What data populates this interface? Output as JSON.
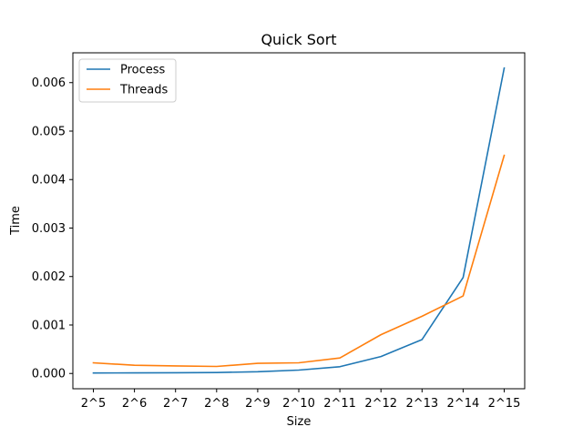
{
  "chart_data": {
    "type": "line",
    "title": "Quick Sort",
    "xlabel": "Size",
    "ylabel": "Time",
    "categories": [
      "2^5",
      "2^6",
      "2^7",
      "2^8",
      "2^9",
      "2^10",
      "2^11",
      "2^12",
      "2^13",
      "2^14",
      "2^15"
    ],
    "ylim": [
      -0.000315,
      0.006615
    ],
    "yticks": [
      0.0,
      0.001,
      0.002,
      0.003,
      0.004,
      0.005,
      0.006
    ],
    "ytick_labels": [
      "0.000",
      "0.001",
      "0.002",
      "0.003",
      "0.004",
      "0.005",
      "0.006"
    ],
    "grid": false,
    "legend_position": "top-left",
    "series": [
      {
        "name": "Process",
        "color": "#1f77b4",
        "values": [
          1e-05,
          1.2e-05,
          1.5e-05,
          2e-05,
          3.5e-05,
          7e-05,
          0.00014,
          0.00035,
          0.0007,
          0.00198,
          0.0063
        ]
      },
      {
        "name": "Threads",
        "color": "#ff7f0e",
        "values": [
          0.00022,
          0.00017,
          0.000155,
          0.000145,
          0.00021,
          0.00022,
          0.00032,
          0.0008,
          0.00118,
          0.0016,
          0.0045
        ]
      }
    ]
  }
}
